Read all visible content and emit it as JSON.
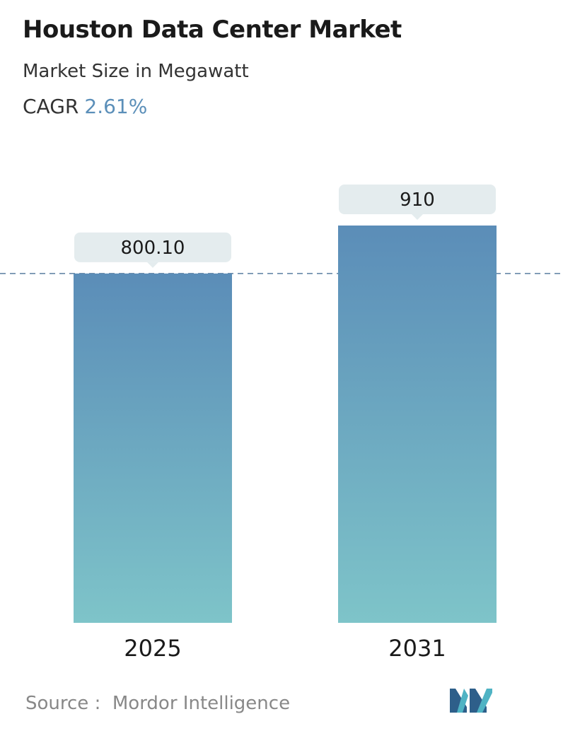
{
  "header": {
    "title": "Houston Data Center Market",
    "subtitle": "Market Size in Megawatt",
    "cagr_label": "CAGR",
    "cagr_value": "2.61%"
  },
  "footer": {
    "source_label": "Source :",
    "source_name": "Mordor Intelligence"
  },
  "colors": {
    "bar_top": "#5b8db8",
    "bar_bottom": "#7ec4c9",
    "label_bg": "#e4ecee",
    "dashed_line": "#5b7fa0",
    "cagr_accent": "#5b8fb9"
  },
  "chart_data": {
    "type": "bar",
    "categories": [
      "2025",
      "2031"
    ],
    "values": [
      800.1,
      910
    ],
    "value_labels": [
      "800.10",
      "910"
    ],
    "reference_line": 800.1,
    "grid": false,
    "legend": "none"
  }
}
